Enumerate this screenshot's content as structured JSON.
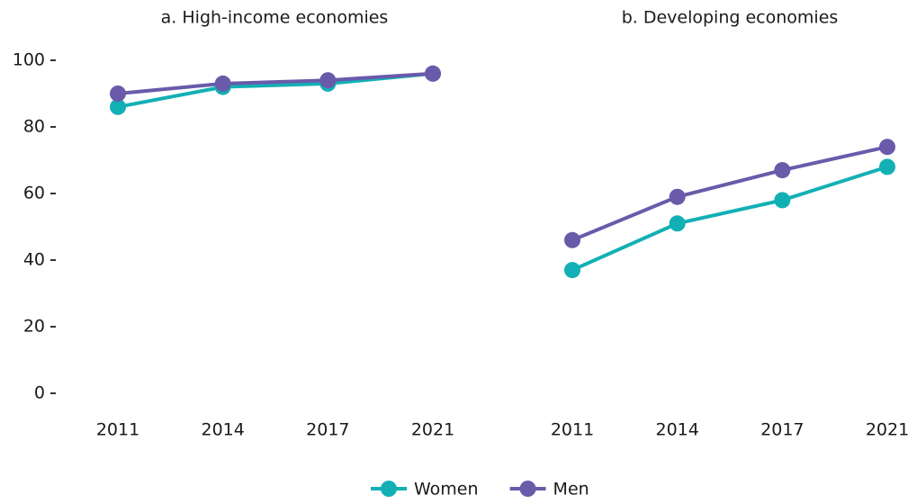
{
  "chart_data": [
    {
      "type": "line",
      "title": "a. High-income economies",
      "categories": [
        "2011",
        "2014",
        "2017",
        "2021"
      ],
      "series": [
        {
          "name": "Women",
          "color": "#12b0b5",
          "values": [
            86,
            92,
            93,
            96
          ]
        },
        {
          "name": "Men",
          "color": "#6a5aaa",
          "values": [
            90,
            93,
            94,
            96
          ]
        }
      ],
      "ylim": [
        0,
        100
      ],
      "yticks": [
        0,
        20,
        40,
        60,
        80,
        100
      ],
      "legend": "bottom"
    },
    {
      "type": "line",
      "title": "b. Developing economies",
      "categories": [
        "2011",
        "2014",
        "2017",
        "2021"
      ],
      "series": [
        {
          "name": "Women",
          "color": "#12b0b5",
          "values": [
            37,
            51,
            58,
            68
          ]
        },
        {
          "name": "Men",
          "color": "#6a5aaa",
          "values": [
            46,
            59,
            67,
            74
          ]
        }
      ],
      "ylim": [
        0,
        100
      ]
    }
  ]
}
